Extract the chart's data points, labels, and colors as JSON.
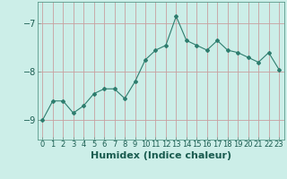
{
  "x": [
    0,
    1,
    2,
    3,
    4,
    5,
    6,
    7,
    8,
    9,
    10,
    11,
    12,
    13,
    14,
    15,
    16,
    17,
    18,
    19,
    20,
    21,
    22,
    23
  ],
  "y": [
    -9.0,
    -8.6,
    -8.6,
    -8.85,
    -8.7,
    -8.45,
    -8.35,
    -8.35,
    -8.55,
    -8.2,
    -7.75,
    -7.55,
    -7.45,
    -6.85,
    -7.35,
    -7.45,
    -7.55,
    -7.35,
    -7.55,
    -7.6,
    -7.7,
    -7.8,
    -7.6,
    -7.95
  ],
  "line_color": "#2e7d6e",
  "bg_color": "#cceee8",
  "grid_color_h": "#c8a0a0",
  "grid_color_v": "#c8a0a0",
  "yticks": [
    -9,
    -8,
    -7
  ],
  "ylim": [
    -9.4,
    -6.55
  ],
  "xlim": [
    -0.5,
    23.5
  ],
  "xlabel": "Humidex (Indice chaleur)",
  "xlabel_fontsize": 8,
  "tick_fontsize": 7,
  "marker": "D",
  "marker_size": 2.0,
  "line_width": 0.8
}
